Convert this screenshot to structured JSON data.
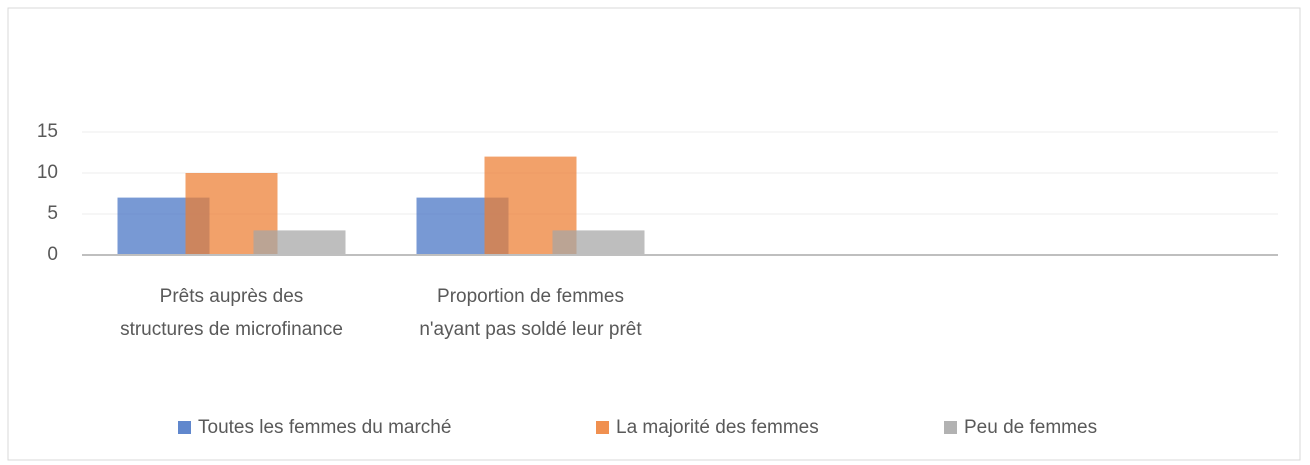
{
  "chart_data": {
    "type": "bar",
    "categories": [
      "Prêts auprès des structures de microfinance",
      "Proportion de femmes n'ayant pas soldé leur prêt",
      null,
      null
    ],
    "series": [
      {
        "name": "Toutes les femmes du marché",
        "color": "#4472c4",
        "values": [
          7,
          7,
          null,
          null
        ]
      },
      {
        "name": "La majorité des femmes",
        "color": "#ed7d31",
        "values": [
          10,
          12,
          null,
          null
        ]
      },
      {
        "name": "Peu de femmes",
        "color": "#a5a5a5",
        "values": [
          3,
          3,
          null,
          null
        ]
      }
    ],
    "ylim": [
      0,
      15
    ],
    "yticks": [
      0,
      5,
      10,
      15
    ],
    "grid": true,
    "legend": "bottom"
  }
}
